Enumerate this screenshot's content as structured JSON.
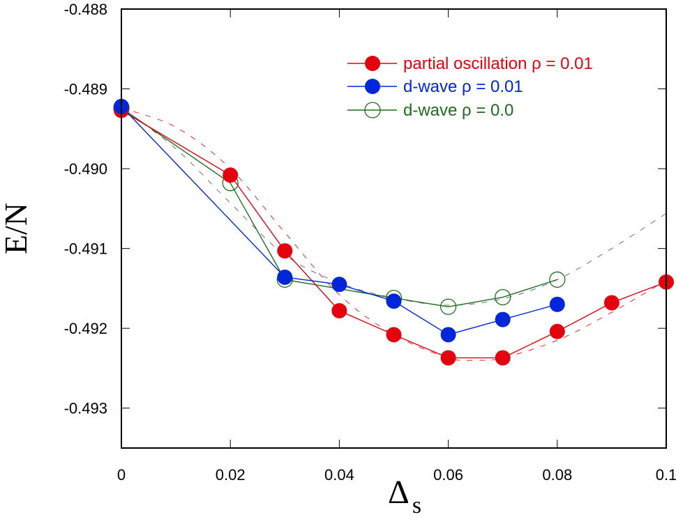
{
  "chart_data": {
    "type": "line",
    "title": "",
    "xlabel": "Δ",
    "xlabel_subscript": "s",
    "ylabel": "E/N",
    "xlim": [
      0,
      0.1
    ],
    "ylim": [
      -0.4935,
      -0.488
    ],
    "grid": false,
    "legend_position": "top-right",
    "x_ticks": [
      0,
      0.02,
      0.04,
      0.06,
      0.08,
      0.1
    ],
    "x_tick_labels": [
      "0",
      "0.02",
      "0.04",
      "0.06",
      "0.08",
      "0.1"
    ],
    "y_ticks": [
      -0.488,
      -0.489,
      -0.49,
      -0.491,
      -0.492,
      -0.493
    ],
    "y_tick_labels": [
      "-0.488",
      "-0.489",
      "-0.490",
      "-0.491",
      "-0.492",
      "-0.493"
    ],
    "series": [
      {
        "name": "partial oscillation ρ = 0.01",
        "color": "#e3000f",
        "marker": "filled-circle",
        "x": [
          0,
          0.02,
          0.03,
          0.04,
          0.05,
          0.06,
          0.07,
          0.08,
          0.09,
          0.1
        ],
        "y": [
          -0.48927,
          -0.49008,
          -0.49103,
          -0.49178,
          -0.49208,
          -0.49237,
          -0.49237,
          -0.49204,
          -0.49168,
          -0.49142
        ]
      },
      {
        "name": "d-wave  ρ = 0.01",
        "color": "#0026d9",
        "marker": "filled-circle",
        "x": [
          0,
          0.03,
          0.04,
          0.05,
          0.06,
          0.07,
          0.08
        ],
        "y": [
          -0.48922,
          -0.49136,
          -0.49145,
          -0.49166,
          -0.49208,
          -0.49189,
          -0.4917
        ]
      },
      {
        "name": "d-wave  ρ = 0.0",
        "color": "#1e6b1e",
        "marker": "open-circle",
        "x": [
          0,
          0.02,
          0.03,
          0.05,
          0.06,
          0.07,
          0.08
        ],
        "y": [
          -0.48924,
          -0.49018,
          -0.49139,
          -0.49162,
          -0.49173,
          -0.49161,
          -0.49139
        ]
      }
    ],
    "fits": [
      {
        "name": "fit partial oscillation",
        "color": "#e3000f",
        "style": "dashed",
        "x": [
          0,
          0.01,
          0.02,
          0.03,
          0.04,
          0.05,
          0.06,
          0.065,
          0.07,
          0.08,
          0.09,
          0.1
        ],
        "y": [
          -0.48924,
          -0.48948,
          -0.49,
          -0.4908,
          -0.49158,
          -0.49208,
          -0.49237,
          -0.4924,
          -0.49237,
          -0.49215,
          -0.4918,
          -0.4914
        ]
      },
      {
        "name": "fit d-wave",
        "color": "#555555",
        "style": "dashed",
        "x": [
          0,
          0.01,
          0.02,
          0.03,
          0.04,
          0.05,
          0.06,
          0.07,
          0.08,
          0.09,
          0.1
        ],
        "y": [
          -0.48924,
          -0.48975,
          -0.49043,
          -0.49108,
          -0.49143,
          -0.49162,
          -0.49171,
          -0.49163,
          -0.49139,
          -0.491,
          -0.49056
        ]
      }
    ]
  }
}
